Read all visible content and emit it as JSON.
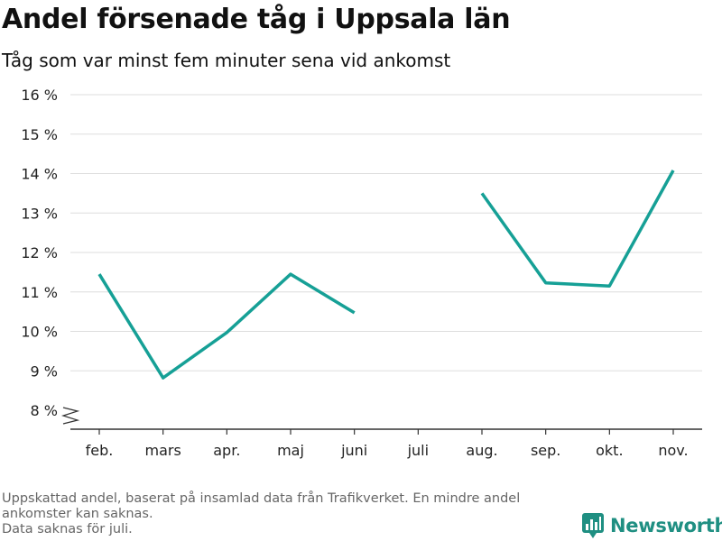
{
  "title": "Andel försenade tåg i Uppsala län",
  "subtitle": "Tåg som var minst fem minuter sena vid ankomst",
  "notes": [
    "Uppskattad andel, baserat på insamlad data från Trafikverket. En mindre andel ankomster kan saknas.",
    "Data saknas för juli."
  ],
  "brand": {
    "name": "Newsworthy",
    "color": "#1f8f82",
    "icon": "bar-chart-logo-icon"
  },
  "chart_data": {
    "type": "line",
    "categories": [
      "feb.",
      "mars",
      "apr.",
      "maj",
      "juni",
      "juli",
      "aug.",
      "sep.",
      "okt.",
      "nov."
    ],
    "series": [
      {
        "values": [
          11.45,
          8.82,
          9.97,
          11.45,
          10.47,
          null,
          13.5,
          11.23,
          11.15,
          14.08
        ]
      }
    ],
    "ylim": [
      8,
      16
    ],
    "yticks": [
      8,
      9,
      10,
      11,
      12,
      13,
      14,
      15,
      16
    ],
    "ytick_labels": [
      "8 %",
      "9 %",
      "10 %",
      "11 %",
      "12 %",
      "13 %",
      "14 %",
      "15 %",
      "16 %"
    ],
    "axis_break": true,
    "grid": true,
    "line_color": "#16a096"
  }
}
